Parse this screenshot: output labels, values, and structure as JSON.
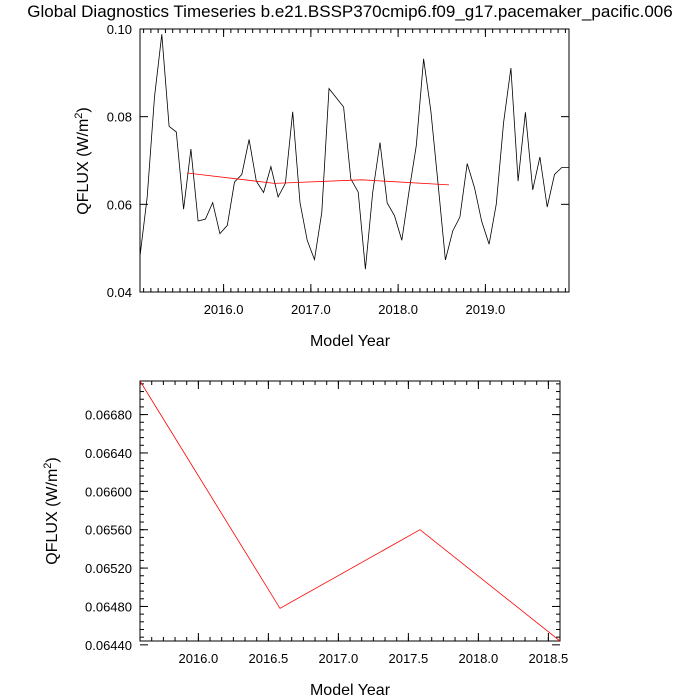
{
  "title": "Global Diagnostics Timeseries b.e21.BSSP370cmip6.f09_g17.pacemaker_pacific.006",
  "chart_data": [
    {
      "type": "line",
      "xlabel": "Model Year",
      "ylabel": "QFLUX (W/m",
      "ylabel_sup": "2",
      "ylabel_tail": ")",
      "xlim": [
        2015.042,
        2019.958
      ],
      "ylim": [
        0.04,
        0.1
      ],
      "x_ticks": [
        2016.0,
        2017.0,
        2018.0,
        2019.0
      ],
      "x_tick_labels": [
        "2016.0",
        "2017.0",
        "2018.0",
        "2019.0"
      ],
      "y_ticks": [
        0.04,
        0.06,
        0.08,
        0.1
      ],
      "y_tick_labels": [
        "0.04",
        "0.06",
        "0.08",
        "0.10"
      ],
      "series": [
        {
          "color": "#000000",
          "x": [
            2015.042,
            2015.125,
            2015.208,
            2015.292,
            2015.375,
            2015.458,
            2015.542,
            2015.625,
            2015.708,
            2015.792,
            2015.875,
            2015.958,
            2016.042,
            2016.125,
            2016.208,
            2016.292,
            2016.375,
            2016.458,
            2016.542,
            2016.625,
            2016.708,
            2016.792,
            2016.875,
            2016.958,
            2017.042,
            2017.125,
            2017.208,
            2017.292,
            2017.375,
            2017.458,
            2017.542,
            2017.625,
            2017.708,
            2017.792,
            2017.875,
            2017.958,
            2018.042,
            2018.125,
            2018.208,
            2018.292,
            2018.375,
            2018.458,
            2018.542,
            2018.625,
            2018.708,
            2018.792,
            2018.875,
            2018.958,
            2019.042,
            2019.125,
            2019.208,
            2019.292,
            2019.375,
            2019.458,
            2019.542,
            2019.625,
            2019.708,
            2019.792,
            2019.875,
            2019.958
          ],
          "values": [
            0.0482,
            0.0617,
            0.0845,
            0.0988,
            0.0778,
            0.0765,
            0.0589,
            0.0726,
            0.0562,
            0.0566,
            0.0604,
            0.0533,
            0.0552,
            0.0651,
            0.0668,
            0.0748,
            0.0653,
            0.0627,
            0.0686,
            0.0617,
            0.0648,
            0.0811,
            0.0604,
            0.0518,
            0.0474,
            0.0582,
            0.0864,
            0.0843,
            0.0822,
            0.0658,
            0.0628,
            0.0452,
            0.0627,
            0.0741,
            0.0603,
            0.0574,
            0.0518,
            0.0629,
            0.0734,
            0.0932,
            0.0812,
            0.0646,
            0.0473,
            0.0539,
            0.0571,
            0.0693,
            0.0638,
            0.0561,
            0.0509,
            0.0601,
            0.0787,
            0.0911,
            0.0653,
            0.081,
            0.0633,
            0.0708,
            0.0594,
            0.0668,
            0.0684,
            0.0684
          ]
        },
        {
          "color": "#ff0000",
          "x": [
            2015.583,
            2016.583,
            2017.583,
            2018.583
          ],
          "values": [
            0.06715,
            0.06478,
            0.0656,
            0.06444
          ]
        }
      ]
    },
    {
      "type": "line",
      "xlabel": "Model Year",
      "ylabel": "QFLUX (W/m",
      "ylabel_sup": "2",
      "ylabel_tail": ")",
      "xlim": [
        2015.583,
        2018.583
      ],
      "ylim": [
        0.06444,
        0.06715
      ],
      "x_ticks": [
        2016.0,
        2016.5,
        2017.0,
        2017.5,
        2018.0,
        2018.5
      ],
      "x_tick_labels": [
        "2016.0",
        "2016.5",
        "2017.0",
        "2017.5",
        "2018.0",
        "2018.5"
      ],
      "y_ticks": [
        0.0644,
        0.0648,
        0.0652,
        0.0656,
        0.066,
        0.0664,
        0.0668
      ],
      "y_tick_labels": [
        "0.06440",
        "0.06480",
        "0.06520",
        "0.06560",
        "0.06600",
        "0.06640",
        "0.06680"
      ],
      "series": [
        {
          "color": "#ff0000",
          "x": [
            2015.583,
            2016.583,
            2017.583,
            2018.583
          ],
          "values": [
            0.06715,
            0.06478,
            0.0656,
            0.06444
          ]
        }
      ]
    }
  ]
}
